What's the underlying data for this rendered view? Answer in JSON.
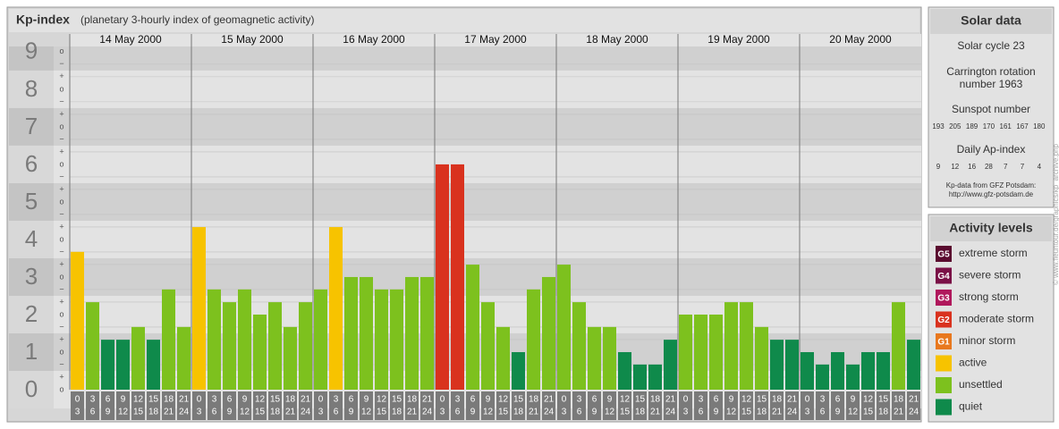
{
  "header": {
    "title": "Kp-index",
    "subtitle": "(planetary 3-hourly index of geomagnetic activity)"
  },
  "chart_data": {
    "type": "bar",
    "ylim": [
      0,
      9.33
    ],
    "yticks": [
      0,
      1,
      2,
      3,
      4,
      5,
      6,
      7,
      8,
      9
    ],
    "sub_ticks": [
      "−",
      "o",
      "+"
    ],
    "time_slots": [
      [
        "0",
        "3"
      ],
      [
        "3",
        "6"
      ],
      [
        "6",
        "9"
      ],
      [
        "9",
        "12"
      ],
      [
        "12",
        "15"
      ],
      [
        "15",
        "18"
      ],
      [
        "18",
        "21"
      ],
      [
        "21",
        "24"
      ]
    ],
    "days": [
      {
        "date": "14 May 2000",
        "values": [
          3.67,
          2.33,
          1.33,
          1.33,
          1.67,
          1.33,
          2.67,
          1.67
        ],
        "colors": [
          "#f7c300",
          "#7dc11e",
          "#0f8a4b",
          "#0f8a4b",
          "#7dc11e",
          "#0f8a4b",
          "#7dc11e",
          "#7dc11e"
        ]
      },
      {
        "date": "15 May 2000",
        "values": [
          4.33,
          2.67,
          2.33,
          2.67,
          2,
          2.33,
          1.67,
          2.33
        ],
        "colors": [
          "#f7c300",
          "#7dc11e",
          "#7dc11e",
          "#7dc11e",
          "#7dc11e",
          "#7dc11e",
          "#7dc11e",
          "#7dc11e"
        ]
      },
      {
        "date": "16 May 2000",
        "values": [
          2.67,
          4.33,
          3,
          3,
          2.67,
          2.67,
          3,
          3
        ],
        "colors": [
          "#7dc11e",
          "#f7c300",
          "#7dc11e",
          "#7dc11e",
          "#7dc11e",
          "#7dc11e",
          "#7dc11e",
          "#7dc11e"
        ]
      },
      {
        "date": "17 May 2000",
        "values": [
          6,
          6,
          3.33,
          2.33,
          1.67,
          1,
          2.67,
          3
        ],
        "colors": [
          "#d9321e",
          "#d9321e",
          "#7dc11e",
          "#7dc11e",
          "#7dc11e",
          "#0f8a4b",
          "#7dc11e",
          "#7dc11e"
        ]
      },
      {
        "date": "18 May 2000",
        "values": [
          3.33,
          2.33,
          1.67,
          1.67,
          1,
          0.67,
          0.67,
          1.33
        ],
        "colors": [
          "#7dc11e",
          "#7dc11e",
          "#7dc11e",
          "#7dc11e",
          "#0f8a4b",
          "#0f8a4b",
          "#0f8a4b",
          "#0f8a4b"
        ]
      },
      {
        "date": "19 May 2000",
        "values": [
          2,
          2,
          2,
          2.33,
          2.33,
          1.67,
          1.33,
          1.33
        ],
        "colors": [
          "#7dc11e",
          "#7dc11e",
          "#7dc11e",
          "#7dc11e",
          "#7dc11e",
          "#7dc11e",
          "#0f8a4b",
          "#0f8a4b"
        ]
      },
      {
        "date": "20 May 2000",
        "values": [
          1,
          0.67,
          1,
          0.67,
          1,
          1,
          2.33,
          1.33
        ],
        "colors": [
          "#0f8a4b",
          "#0f8a4b",
          "#0f8a4b",
          "#0f8a4b",
          "#0f8a4b",
          "#0f8a4b",
          "#7dc11e",
          "#0f8a4b"
        ]
      }
    ]
  },
  "solar": {
    "title": "Solar data",
    "cycle": "Solar cycle 23",
    "carrington": [
      "Carrington rotation",
      "number 1963"
    ],
    "sunspot_label": "Sunspot number",
    "sunspot": [
      193,
      205,
      189,
      170,
      161,
      167,
      180
    ],
    "ap_label": "Daily Ap-index",
    "ap": [
      9,
      12,
      16,
      28,
      7,
      7,
      4
    ],
    "source": [
      "Kp-data from GFZ Potsdam:",
      "http://www.gfz-potsdam.de"
    ]
  },
  "levels": {
    "title": "Activity levels",
    "items": [
      {
        "code": "G5",
        "label": "extreme storm",
        "color": "#5a0b2f"
      },
      {
        "code": "G4",
        "label": "severe storm",
        "color": "#7a1046"
      },
      {
        "code": "G3",
        "label": "strong storm",
        "color": "#b0185c"
      },
      {
        "code": "G2",
        "label": "moderate storm",
        "color": "#d9321e"
      },
      {
        "code": "G1",
        "label": "minor storm",
        "color": "#e8781e"
      },
      {
        "label": "active",
        "color": "#f7c300"
      },
      {
        "label": "unsettled",
        "color": "#7dc11e"
      },
      {
        "label": "quiet",
        "color": "#0f8a4b"
      }
    ]
  },
  "credit": "© www.fleuntour.de/graphics/kp_archive.php"
}
